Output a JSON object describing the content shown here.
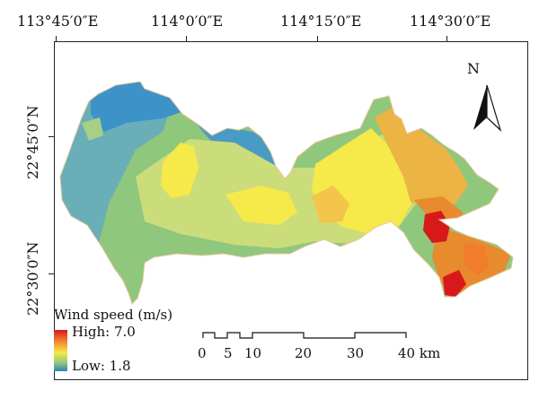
{
  "axes": {
    "longitude_labels": [
      "113°45′0″E",
      "114°0′0″E",
      "114°15′0″E",
      "114°30′0″E"
    ],
    "latitude_labels": [
      "22°45′0″N",
      "22°30′0″N"
    ]
  },
  "north_arrow": {
    "label": "N",
    "icon": "north-arrow-icon"
  },
  "legend": {
    "title": "Wind speed (m/s)",
    "high_label": "High: 7.0",
    "low_label": "Low: 1.8",
    "colors": [
      "#d7191c",
      "#f07c2c",
      "#f6e94a",
      "#8fc77d",
      "#2b83ba"
    ]
  },
  "scale_bar": {
    "labels": [
      "0",
      "5",
      "10",
      "20",
      "30",
      "40 km"
    ]
  }
}
